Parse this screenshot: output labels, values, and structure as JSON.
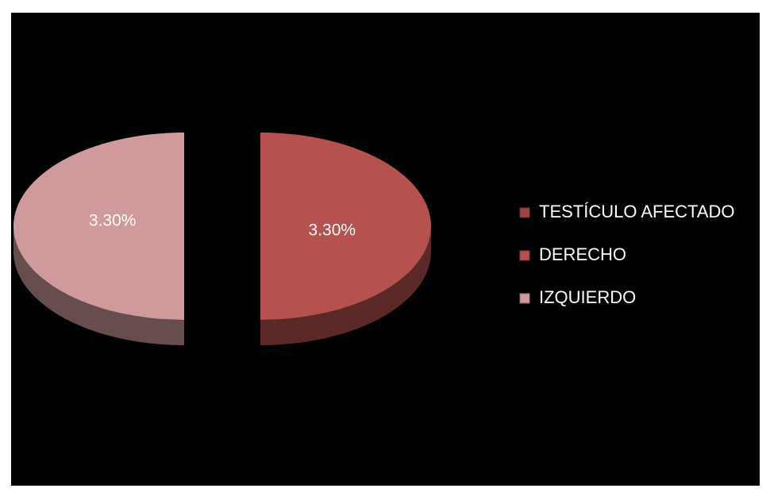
{
  "chart_data": {
    "type": "pie",
    "categories": [
      "DERECHO",
      "IZQUIERDO"
    ],
    "colors": [
      "#b5514f",
      "#d09a9c"
    ],
    "series": [
      {
        "name": "TESTÍCULO AFECTADO",
        "color": "#9e4443",
        "values": [
          3.3,
          3.3
        ],
        "value_labels": [
          "3.30%",
          "3.30%"
        ]
      }
    ],
    "legend": "right"
  }
}
